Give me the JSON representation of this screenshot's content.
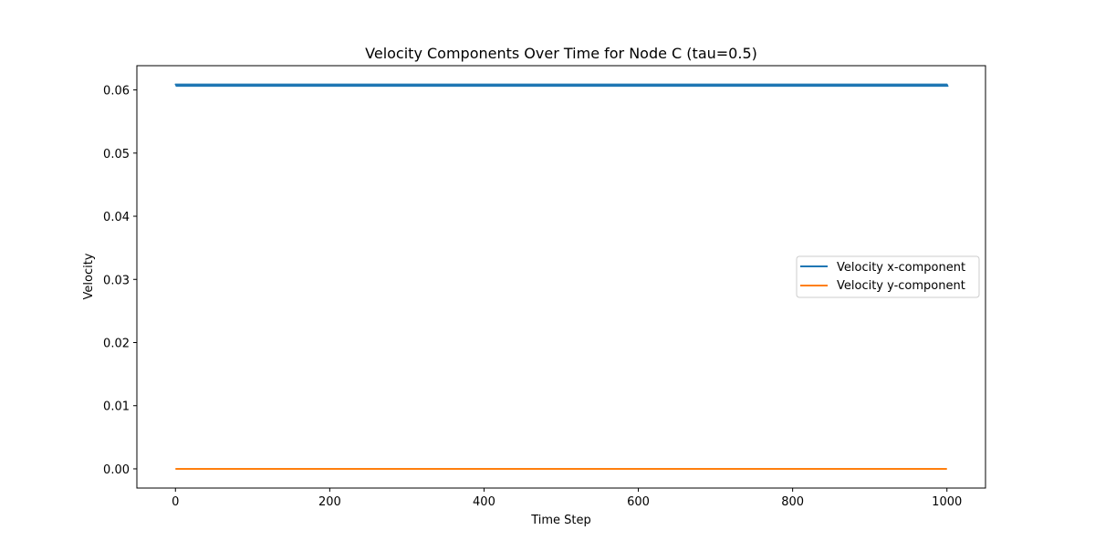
{
  "chart_data": {
    "type": "line",
    "title": "Velocity Components Over Time for Node C (tau=0.5)",
    "xlabel": "Time Step",
    "ylabel": "Velocity",
    "xlim": [
      -50,
      1050
    ],
    "ylim": [
      -0.00304,
      0.06384
    ],
    "xticks": [
      0,
      200,
      400,
      600,
      800,
      1000
    ],
    "xtick_labels": [
      "0",
      "200",
      "400",
      "600",
      "800",
      "1000"
    ],
    "yticks": [
      0.0,
      0.01,
      0.02,
      0.03,
      0.04,
      0.05,
      0.06
    ],
    "ytick_labels": [
      "0.00",
      "0.01",
      "0.02",
      "0.03",
      "0.04",
      "0.05",
      "0.06"
    ],
    "grid": false,
    "legend_position": "center-right",
    "series": [
      {
        "name": "Velocity x-component",
        "color": "#1f77b4",
        "x": [
          0,
          1000
        ],
        "y_band": [
          0.0606,
          0.0609
        ]
      },
      {
        "name": "Velocity y-component",
        "color": "#ff7f0e",
        "x": [
          0,
          1000
        ],
        "y": [
          0.0,
          0.0
        ]
      }
    ]
  }
}
